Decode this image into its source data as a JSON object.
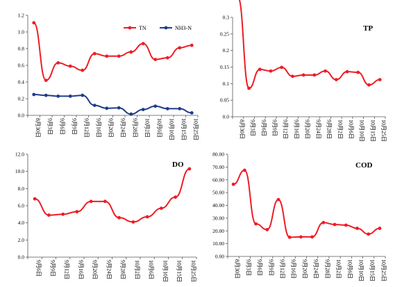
{
  "chart_data": [
    {
      "type": "line",
      "title": "",
      "xlabel": "",
      "ylabel": "",
      "ylim": [
        0.0,
        1.2
      ],
      "yticks": [
        "0.0",
        "0.2",
        "0.4",
        "0.6",
        "0.8",
        "1.0",
        "1.2"
      ],
      "legend": "top-center",
      "grid": false,
      "categories": [
        "8月30日",
        "9月3日",
        "9月6日",
        "9月9日",
        "9月12日",
        "9月16日",
        "9月20日",
        "9月24日",
        "9月28日",
        "10月2日",
        "10月6日",
        "10月10日",
        "10月15日",
        "10月25日"
      ],
      "series": [
        {
          "name": "TN",
          "color": "#ee1c25",
          "values": [
            1.11,
            0.42,
            0.63,
            0.59,
            0.54,
            0.74,
            0.71,
            0.71,
            0.76,
            0.86,
            0.67,
            0.69,
            0.81,
            0.84
          ]
        },
        {
          "name": "NH3-N",
          "color": "#1f3c88",
          "values": [
            0.25,
            0.24,
            0.23,
            0.23,
            0.24,
            0.12,
            0.085,
            0.09,
            0.015,
            0.07,
            0.11,
            0.08,
            0.08,
            0.03
          ]
        }
      ]
    },
    {
      "type": "line",
      "title": "TP",
      "xlabel": "",
      "ylabel": "",
      "ylim": [
        0.0,
        0.3
      ],
      "yticks": [
        "0.0",
        "0.05",
        "0.1",
        "0.15",
        "0.2",
        "0.25",
        "0.3"
      ],
      "legend": "none",
      "grid": false,
      "categories": [
        "8月30日",
        "9月3日",
        "9月6日",
        "9月9日",
        "9月12日",
        "9月16日",
        "9月20日",
        "9月24日",
        "9月28日",
        "10月2日",
        "10月6日",
        "10月10日",
        "10月15日",
        "10月25日"
      ],
      "series": [
        {
          "name": "",
          "color": "#ee1c25",
          "values": [
            0.36,
            0.086,
            0.143,
            0.138,
            0.149,
            0.122,
            0.126,
            0.126,
            0.138,
            0.112,
            0.136,
            0.134,
            0.096,
            0.112
          ]
        }
      ]
    },
    {
      "type": "line",
      "title": "DO",
      "xlabel": "",
      "ylabel": "",
      "ylim": [
        0.0,
        12.0
      ],
      "yticks": [
        "0.0",
        "2.0",
        "4.0",
        "6.0",
        "8.0",
        "10.0",
        "12.0"
      ],
      "legend": "none",
      "grid": false,
      "categories": [
        "9月6日",
        "9月9日",
        "9月12日",
        "9月16日",
        "9月20日",
        "9月24日",
        "9月28日",
        "10月2日",
        "10月6日",
        "10月10日",
        "10月15日",
        "10月25日"
      ],
      "series": [
        {
          "name": "",
          "color": "#ee1c25",
          "values": [
            6.8,
            4.9,
            5.0,
            5.3,
            6.5,
            6.5,
            4.6,
            4.1,
            4.7,
            5.7,
            7.0,
            10.3
          ]
        }
      ]
    },
    {
      "type": "line",
      "title": "COD",
      "xlabel": "",
      "ylabel": "",
      "ylim": [
        0.0,
        80.0
      ],
      "yticks": [
        "0.00",
        "10.00",
        "20.00",
        "30.00",
        "40.00",
        "50.00",
        "60.00",
        "70.00",
        "80.00"
      ],
      "legend": "none",
      "grid": false,
      "categories": [
        "8月30日",
        "9月3日",
        "9月6日",
        "9月9日",
        "9月12日",
        "9月16日",
        "9月20日",
        "9月24日",
        "9月28日",
        "10月2日",
        "10月6日",
        "10月10日",
        "10月15日",
        "10月25日"
      ],
      "series": [
        {
          "name": "",
          "color": "#ee1c25",
          "values": [
            56.5,
            67.5,
            25.5,
            21.0,
            44.5,
            15.0,
            15.3,
            15.3,
            26.5,
            25.0,
            24.5,
            22.0,
            17.5,
            22.0
          ]
        }
      ]
    }
  ]
}
